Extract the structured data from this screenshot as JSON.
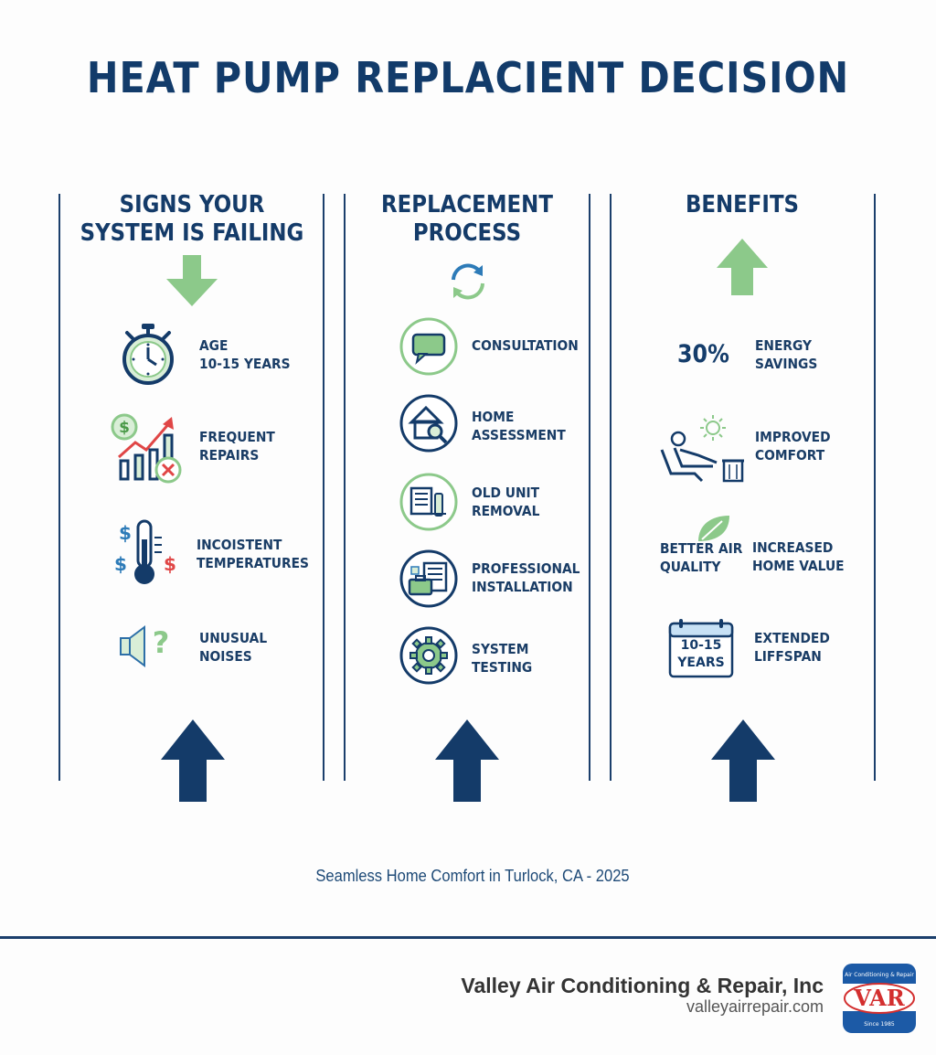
{
  "title": "HEAT PUMP REPLACIENT DECISION",
  "columns": [
    {
      "heading": "SIGNS YOUR\nSYSTEM IS FAILING",
      "items": [
        {
          "label": "AGE\n10-15 YEARS",
          "icon": "stopwatch-icon"
        },
        {
          "label": "FREQUENT\nREPAIRS",
          "icon": "repair-cost-chart-icon"
        },
        {
          "label": "INCOISTENT\nTEMPERATURES",
          "icon": "thermometer-icon"
        },
        {
          "label": "UNUSUAL\nNOISES",
          "icon": "speaker-question-icon"
        }
      ]
    },
    {
      "heading": "REPLACEMENT\nPROCESS",
      "items": [
        {
          "label": "CONSULTATION",
          "icon": "speech-bubble-icon"
        },
        {
          "label": "HOME\nASSESSMENT",
          "icon": "house-magnifier-icon"
        },
        {
          "label": "OLD UNIT\nREMOVAL",
          "icon": "unit-removal-icon"
        },
        {
          "label": "PROFESSIONAL\nINSTALLATION",
          "icon": "toolbox-icon"
        },
        {
          "label": "SYSTEM\nTESTING",
          "icon": "gear-icon"
        }
      ]
    },
    {
      "heading": "BENEFITS",
      "items": [
        {
          "stat": "30%",
          "label": "ENERGY\nSAVINGS"
        },
        {
          "label": "IMPROVED\nCOMFORT",
          "icon": "person-relaxing-icon"
        },
        {
          "side_label": "BETTER AIR\nQUALITY",
          "label": "INCREASED\nHOME VALUE",
          "icon": "leaf-icon"
        },
        {
          "calendar_text": "10-15\nYEARS",
          "label": "EXTENDED\nLIFFSPAN",
          "icon": "calendar-icon"
        }
      ]
    }
  ],
  "tagline": "Seamless Home Comfort in Turlock, CA - 2025",
  "company_name": "Valley Air Conditioning & Repair, Inc",
  "website": "valleyairrepair.com",
  "logo": {
    "text": "VAR",
    "arc_text": "Air Conditioning & Repair",
    "since": "Since 1985"
  },
  "colors": {
    "navy": "#143b69",
    "green": "#8cc98a",
    "red": "#e04646"
  }
}
